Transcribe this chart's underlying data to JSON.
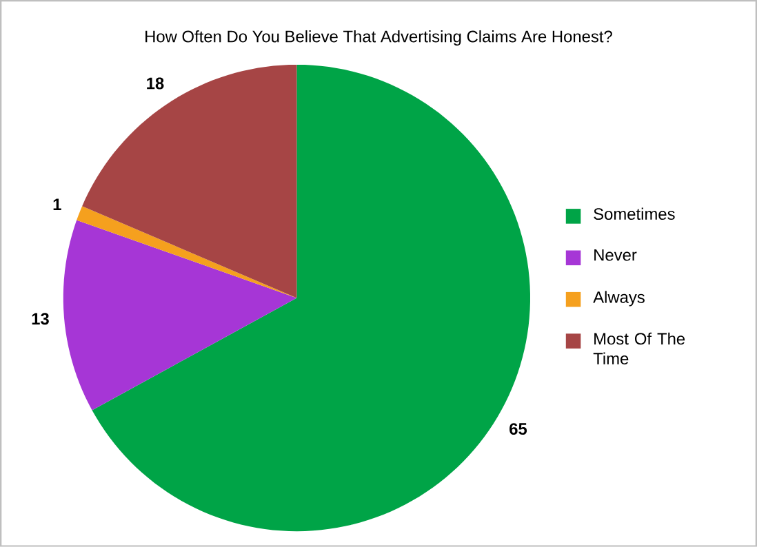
{
  "chart_data": {
    "type": "pie",
    "title": "How Often Do You Believe That Advertising Claims Are Honest?",
    "categories": [
      "Sometimes",
      "Never",
      "Always",
      "Most Of The Time"
    ],
    "values": [
      65,
      13,
      1,
      18
    ],
    "colors": [
      "#00a447",
      "#a636d6",
      "#f5a01e",
      "#a64545"
    ],
    "data_labels": true,
    "legend": "right"
  }
}
